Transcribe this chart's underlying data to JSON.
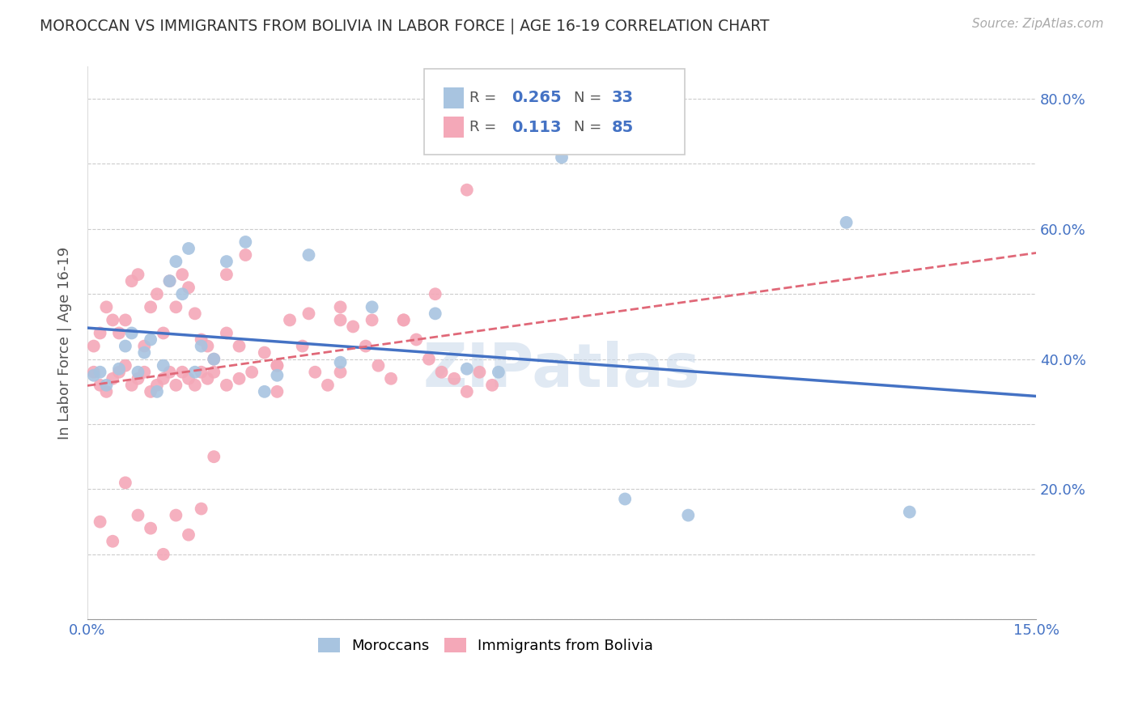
{
  "title": "MOROCCAN VS IMMIGRANTS FROM BOLIVIA IN LABOR FORCE | AGE 16-19 CORRELATION CHART",
  "source_text": "Source: ZipAtlas.com",
  "ylabel_text": "In Labor Force | Age 16-19",
  "xlim": [
    0.0,
    0.15
  ],
  "ylim": [
    0.0,
    0.85
  ],
  "moroccan_color": "#a8c4e0",
  "bolivia_color": "#f4a8b8",
  "line_moroccan_color": "#4472c4",
  "line_bolivia_color": "#e06878",
  "text_color_blue": "#4472c4",
  "background_color": "#ffffff",
  "moroccan_x": [
    0.001,
    0.002,
    0.003,
    0.005,
    0.006,
    0.007,
    0.008,
    0.009,
    0.01,
    0.011,
    0.012,
    0.013,
    0.014,
    0.015,
    0.016,
    0.017,
    0.018,
    0.02,
    0.022,
    0.025,
    0.028,
    0.03,
    0.035,
    0.04,
    0.045,
    0.055,
    0.06,
    0.065,
    0.075,
    0.085,
    0.095,
    0.12,
    0.13
  ],
  "moroccan_y": [
    0.375,
    0.38,
    0.36,
    0.385,
    0.42,
    0.44,
    0.38,
    0.41,
    0.43,
    0.35,
    0.39,
    0.52,
    0.55,
    0.5,
    0.57,
    0.38,
    0.42,
    0.4,
    0.55,
    0.58,
    0.35,
    0.375,
    0.56,
    0.395,
    0.48,
    0.47,
    0.385,
    0.38,
    0.71,
    0.185,
    0.16,
    0.61,
    0.165
  ],
  "bolivia_x": [
    0.001,
    0.001,
    0.002,
    0.002,
    0.003,
    0.003,
    0.004,
    0.004,
    0.005,
    0.005,
    0.006,
    0.006,
    0.007,
    0.007,
    0.008,
    0.008,
    0.009,
    0.009,
    0.01,
    0.01,
    0.011,
    0.011,
    0.012,
    0.012,
    0.013,
    0.013,
    0.014,
    0.014,
    0.015,
    0.015,
    0.016,
    0.016,
    0.017,
    0.017,
    0.018,
    0.018,
    0.019,
    0.019,
    0.02,
    0.02,
    0.022,
    0.022,
    0.024,
    0.024,
    0.026,
    0.028,
    0.03,
    0.03,
    0.032,
    0.034,
    0.036,
    0.038,
    0.04,
    0.04,
    0.042,
    0.044,
    0.046,
    0.048,
    0.05,
    0.052,
    0.054,
    0.056,
    0.058,
    0.06,
    0.062,
    0.064,
    0.002,
    0.004,
    0.006,
    0.008,
    0.01,
    0.012,
    0.014,
    0.016,
    0.018,
    0.02,
    0.022,
    0.025,
    0.03,
    0.035,
    0.04,
    0.045,
    0.05,
    0.055,
    0.06
  ],
  "bolivia_y": [
    0.38,
    0.42,
    0.36,
    0.44,
    0.35,
    0.48,
    0.37,
    0.46,
    0.38,
    0.44,
    0.39,
    0.46,
    0.36,
    0.52,
    0.37,
    0.53,
    0.38,
    0.42,
    0.35,
    0.48,
    0.36,
    0.5,
    0.37,
    0.44,
    0.38,
    0.52,
    0.36,
    0.48,
    0.38,
    0.53,
    0.37,
    0.51,
    0.36,
    0.47,
    0.38,
    0.43,
    0.37,
    0.42,
    0.38,
    0.4,
    0.36,
    0.44,
    0.37,
    0.42,
    0.38,
    0.41,
    0.35,
    0.39,
    0.46,
    0.42,
    0.38,
    0.36,
    0.46,
    0.38,
    0.45,
    0.42,
    0.39,
    0.37,
    0.46,
    0.43,
    0.4,
    0.38,
    0.37,
    0.35,
    0.38,
    0.36,
    0.15,
    0.12,
    0.21,
    0.16,
    0.14,
    0.1,
    0.16,
    0.13,
    0.17,
    0.25,
    0.53,
    0.56,
    0.39,
    0.47,
    0.48,
    0.46,
    0.46,
    0.5,
    0.66
  ]
}
